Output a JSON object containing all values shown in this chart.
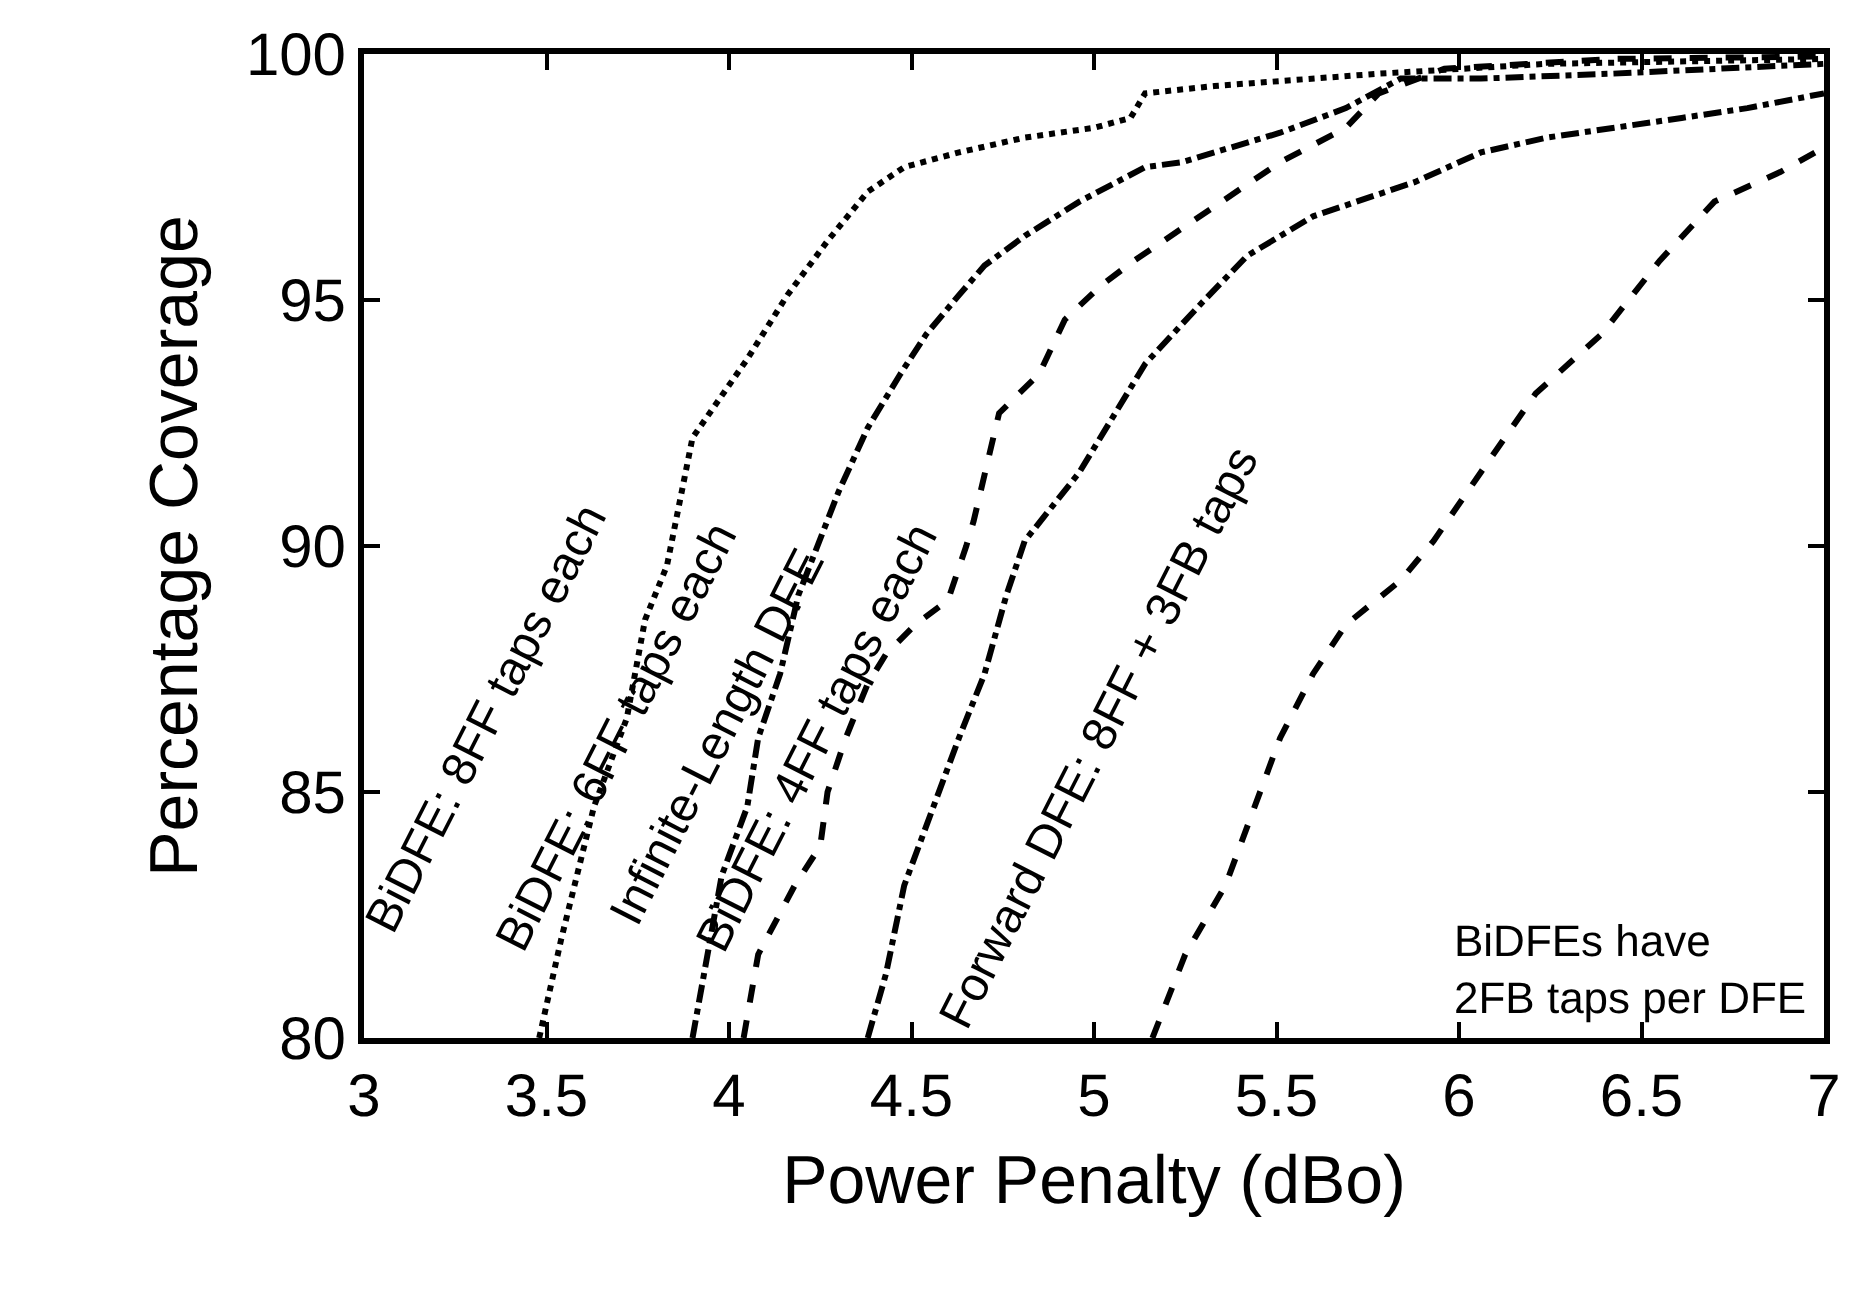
{
  "chart_data": {
    "type": "line",
    "xlabel": "Power Penalty (dBo)",
    "ylabel": "Percentage Coverage",
    "xlim": [
      3,
      7
    ],
    "xticks": [
      3,
      3.5,
      4,
      4.5,
      5,
      5.5,
      6,
      6.5,
      7
    ],
    "ylim": [
      80,
      100
    ],
    "yticks": [
      80,
      85,
      90,
      95,
      100
    ],
    "grid": false,
    "legend": false,
    "marker": "none",
    "series": [
      {
        "name": "BiDFE: 8FF taps each",
        "color": "#000000",
        "line_style": "dotted",
        "x": [
          3.48,
          3.54,
          3.63,
          3.72,
          3.77,
          3.83,
          3.9,
          4.05,
          4.16,
          4.27,
          4.38,
          4.48,
          4.63,
          4.81,
          5.0,
          5.1,
          5.14,
          5.33,
          5.78,
          6.24,
          7
        ],
        "values": [
          80,
          82,
          84.7,
          86.5,
          88.5,
          89.6,
          92.2,
          93.8,
          95.1,
          96.2,
          97.2,
          97.7,
          98,
          98.3,
          98.5,
          98.7,
          99.2,
          99.35,
          99.6,
          99.8,
          99.9
        ]
      },
      {
        "name": "BiDFE: 6FF taps each",
        "color": "#000000",
        "line_style": "dashdot",
        "x": [
          3.9,
          3.98,
          4.05,
          4.08,
          4.14,
          4.19,
          4.3,
          4.38,
          4.47,
          4.54,
          4.63,
          4.7,
          4.81,
          4.96,
          5.14,
          5.24,
          5.51,
          5.69,
          5.84,
          6.06,
          6.42,
          7
        ],
        "values": [
          80,
          83.3,
          84.7,
          86.1,
          87.4,
          89,
          91.1,
          92.4,
          93.5,
          94.3,
          95.1,
          95.7,
          96.3,
          97,
          97.7,
          97.8,
          98.4,
          98.9,
          99.5,
          99.5,
          99.6,
          99.8
        ]
      },
      {
        "name": "Infinite-Length DFE",
        "color": "#000000",
        "line_style": "dashed",
        "x": [
          4.04,
          4.08,
          4.18,
          4.25,
          4.27,
          4.32,
          4.38,
          4.43,
          4.51,
          4.6,
          4.65,
          4.67,
          4.74,
          4.85,
          4.92,
          5.02,
          5.11,
          5.33,
          5.51,
          5.69,
          5.78,
          5.96,
          6.42,
          7
        ],
        "values": [
          80,
          81.7,
          83.1,
          83.9,
          85,
          86.1,
          87.2,
          87.8,
          88.4,
          88.9,
          90,
          90.5,
          92.7,
          93.5,
          94.6,
          95.3,
          95.8,
          96.9,
          97.8,
          98.5,
          99.2,
          99.7,
          99.9,
          99.95
        ]
      },
      {
        "name": "BiDFE: 4FF taps each",
        "color": "#000000",
        "line_style": "dashdot",
        "x": [
          4.38,
          4.43,
          4.48,
          4.56,
          4.63,
          4.7,
          4.76,
          4.81,
          4.96,
          5.14,
          5.29,
          5.42,
          5.6,
          5.88,
          6.06,
          6.24,
          6.61,
          6.79,
          7
        ],
        "values": [
          80,
          81.3,
          83.1,
          84.7,
          86.1,
          87.4,
          89,
          90.1,
          91.5,
          93.7,
          94.9,
          95.9,
          96.7,
          97.4,
          98,
          98.3,
          98.7,
          98.9,
          99.2
        ]
      },
      {
        "name": "Forward DFE: 8FF + 3FB taps",
        "color": "#000000",
        "line_style": "dashed",
        "x": [
          5.16,
          5.25,
          5.36,
          5.44,
          5.51,
          5.6,
          5.69,
          5.84,
          5.93,
          6.06,
          6.21,
          6.39,
          6.55,
          6.7,
          6.88,
          7
        ],
        "values": [
          80,
          81.7,
          83.1,
          84.7,
          86.1,
          87.4,
          88.4,
          89.3,
          90.1,
          91.5,
          93.1,
          94.3,
          95.8,
          97,
          97.6,
          98.1
        ]
      }
    ],
    "annotations": [
      "BiDFEs have\n2FB taps per DFE"
    ]
  }
}
